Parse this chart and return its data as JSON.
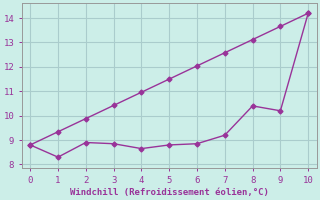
{
  "xlabel": "Windchill (Refroidissement éolien,°C)",
  "x": [
    0,
    1,
    2,
    3,
    4,
    5,
    6,
    7,
    8,
    9,
    10
  ],
  "line1_y": [
    8.8,
    8.3,
    8.9,
    8.85,
    8.65,
    8.8,
    8.85,
    9.2,
    10.4,
    10.2,
    14.2
  ],
  "line2_y": [
    8.8,
    9.34,
    9.88,
    10.42,
    10.96,
    11.5,
    12.04,
    12.58,
    13.12,
    13.66,
    14.2
  ],
  "line_color": "#993399",
  "bg_color": "#cceee8",
  "grid_color": "#aacccc",
  "ylim": [
    7.85,
    14.6
  ],
  "xlim": [
    -0.3,
    10.3
  ],
  "yticks": [
    8,
    9,
    10,
    11,
    12,
    13,
    14
  ],
  "xticks": [
    0,
    1,
    2,
    3,
    4,
    5,
    6,
    7,
    8,
    9,
    10
  ],
  "marker": "D",
  "markersize": 2.5,
  "linewidth": 1.0
}
